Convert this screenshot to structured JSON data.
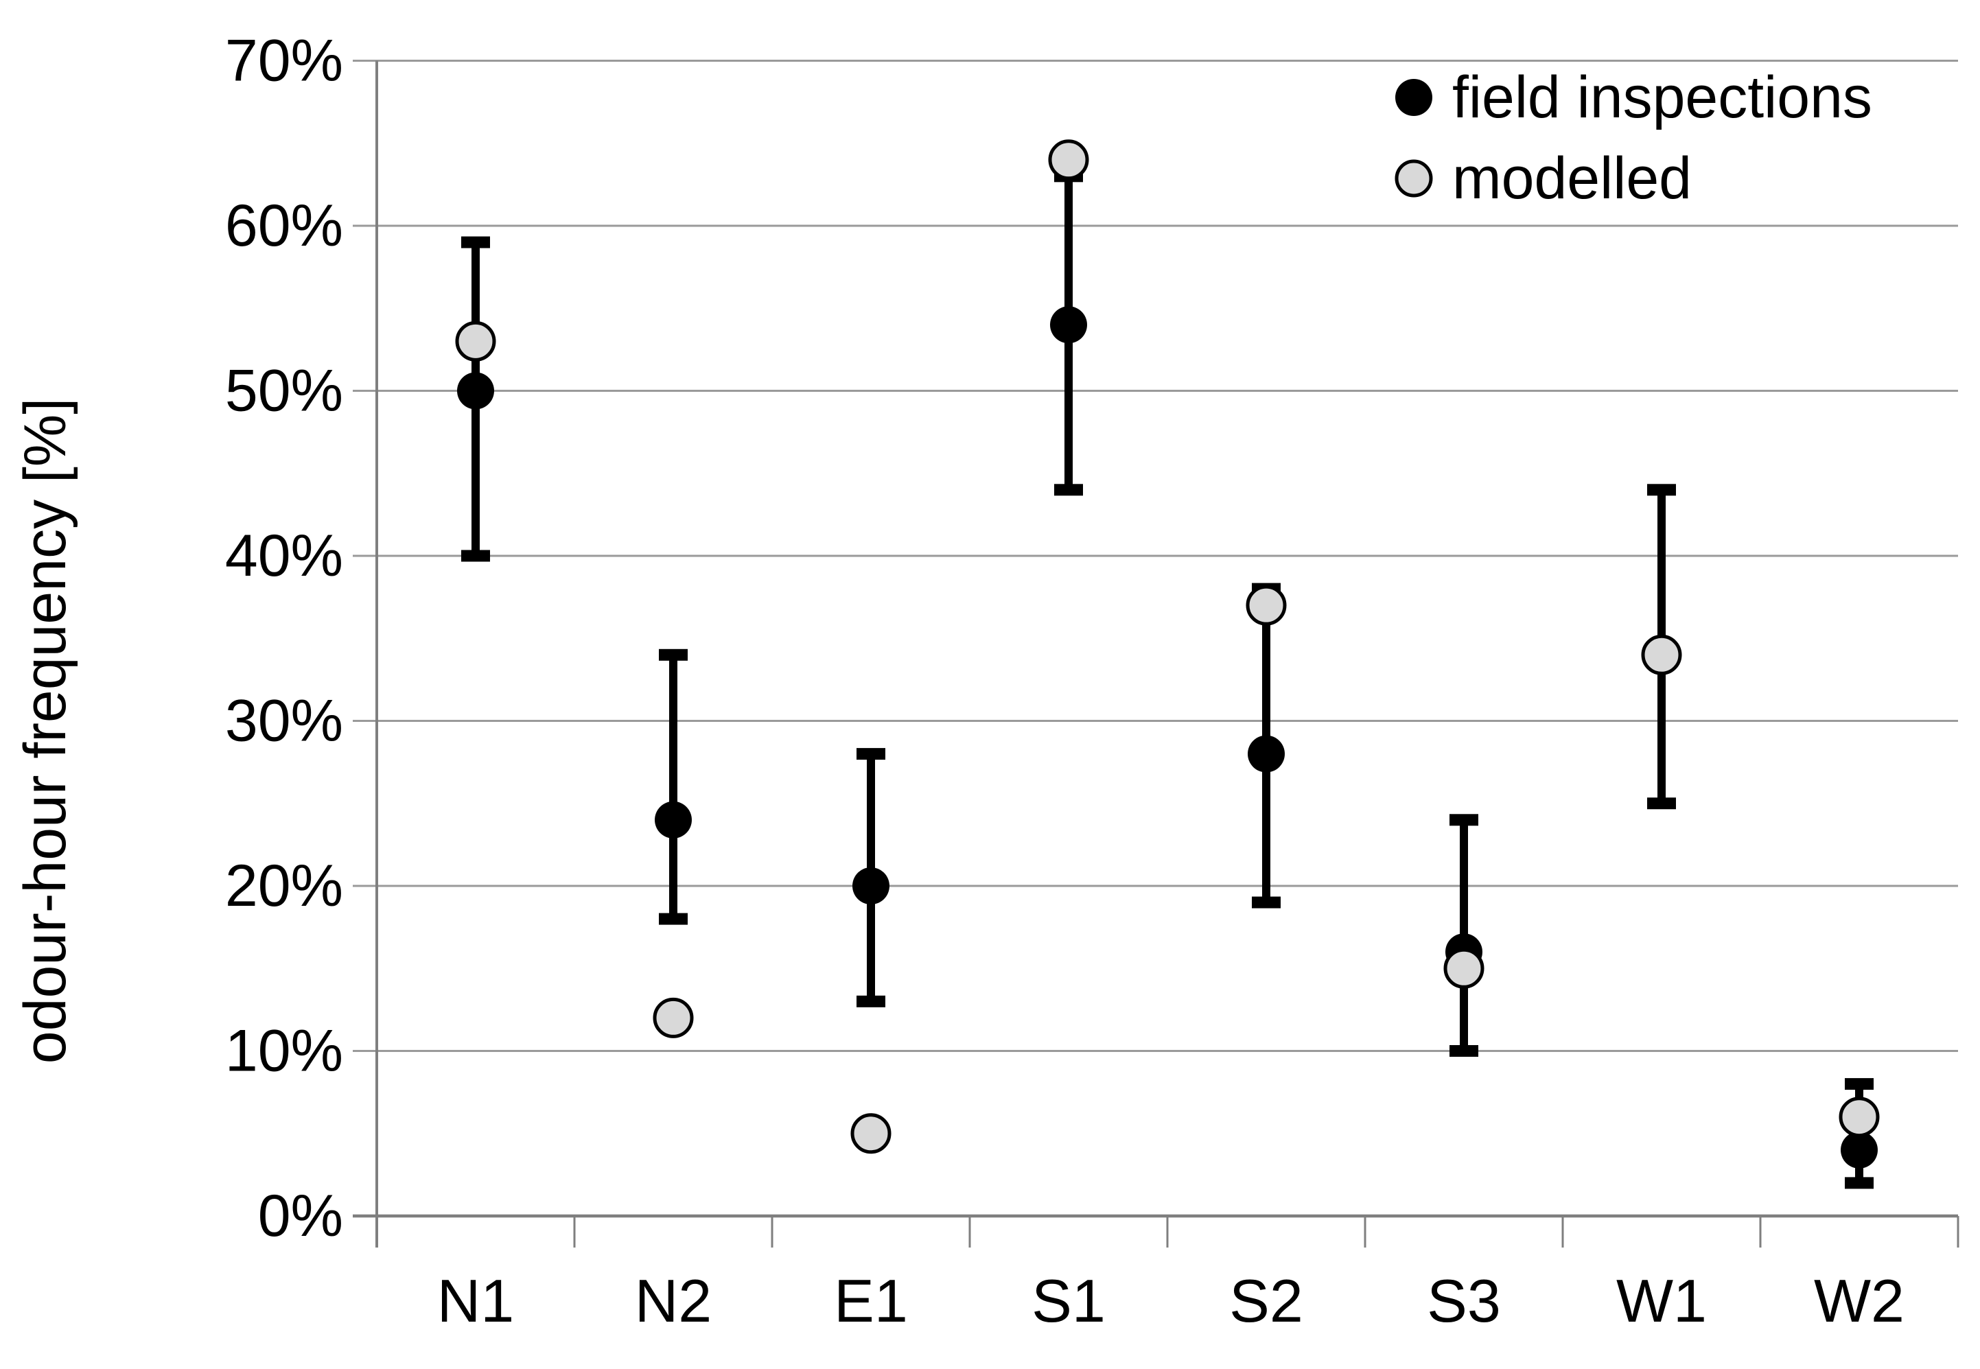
{
  "chart_data": {
    "type": "scatter",
    "title": "",
    "xlabel": "",
    "ylabel": "odour-hour frequency [%]",
    "categories": [
      "N1",
      "N2",
      "E1",
      "S1",
      "S2",
      "S3",
      "W1",
      "W2"
    ],
    "y_tick_labels": [
      "0%",
      "10%",
      "20%",
      "30%",
      "40%",
      "50%",
      "60%",
      "70%"
    ],
    "ylim": [
      0,
      70
    ],
    "grid": "horizontal gridlines at every 10%",
    "legend_position": "top-right inside plot",
    "series": [
      {
        "name": "field inspections",
        "marker": "filled-black-circle",
        "values": [
          50,
          24,
          20,
          54,
          28,
          16,
          34,
          4
        ],
        "error_low": [
          40,
          18,
          13,
          44,
          19,
          10,
          25,
          2
        ],
        "error_high": [
          59,
          34,
          28,
          63,
          38,
          24,
          44,
          8
        ]
      },
      {
        "name": "modelled",
        "marker": "grey-circle-black-outline",
        "values": [
          53,
          12,
          5,
          64,
          37,
          15,
          34,
          6
        ]
      }
    ]
  },
  "colors": {
    "field": "#000000",
    "modelled": "#d9d9d9",
    "gridline": "#9a9a9a",
    "axis": "#7f7f7f",
    "background": "#ffffff",
    "text": "#000000"
  }
}
